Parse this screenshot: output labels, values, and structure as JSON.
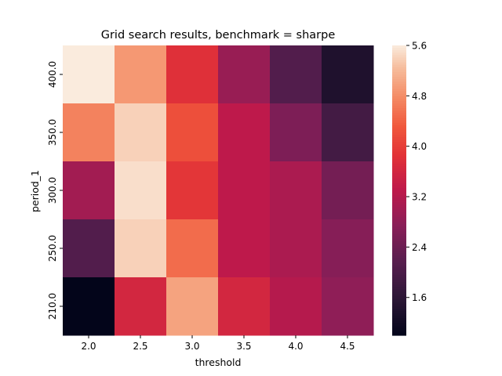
{
  "chart_data": {
    "type": "heatmap",
    "title": "Grid search results, benchmark = sharpe",
    "xlabel": "threshold",
    "ylabel": "period_1",
    "x_categories": [
      "2.0",
      "2.5",
      "3.0",
      "3.5",
      "4.0",
      "4.5"
    ],
    "y_categories": [
      "400.0",
      "350.0",
      "300.0",
      "250.0",
      "210.0"
    ],
    "values": [
      [
        5.6,
        4.9,
        3.8,
        2.9,
        2.1,
        1.4
      ],
      [
        4.7,
        5.4,
        4.2,
        3.3,
        2.6,
        1.9
      ],
      [
        3.0,
        5.5,
        3.9,
        3.3,
        3.1,
        2.5
      ],
      [
        2.1,
        5.4,
        4.5,
        3.3,
        3.1,
        2.7
      ],
      [
        1.0,
        3.6,
        5.0,
        3.6,
        3.2,
        2.8
      ]
    ],
    "colorbar": {
      "ticks": [
        "1.6",
        "2.4",
        "3.2",
        "4.0",
        "4.8",
        "5.6"
      ],
      "min": 1.0,
      "max": 5.6
    },
    "colormap": "rocket"
  }
}
